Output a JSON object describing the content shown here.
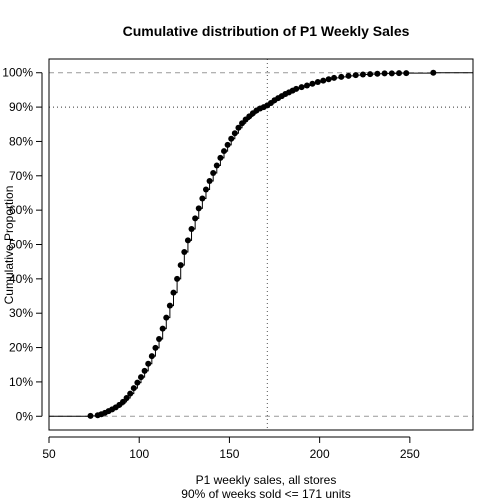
{
  "chart_data": {
    "type": "scatter",
    "title": "Cumulative distribution of P1 Weekly Sales",
    "xlabel": "P1 weekly sales, all stores",
    "subtitle": "90% of weeks sold <= 171 units",
    "ylabel": "Cumulative Proportion",
    "xlim": [
      50,
      285
    ],
    "ylim": [
      -0.04,
      1.04
    ],
    "x_ticks": [
      50,
      100,
      150,
      200,
      250
    ],
    "y_ticks": [
      {
        "value": 0.0,
        "label": "0%"
      },
      {
        "value": 0.1,
        "label": "10%"
      },
      {
        "value": 0.2,
        "label": "20%"
      },
      {
        "value": 0.3,
        "label": "30%"
      },
      {
        "value": 0.4,
        "label": "40%"
      },
      {
        "value": 0.5,
        "label": "50%"
      },
      {
        "value": 0.6,
        "label": "60%"
      },
      {
        "value": 0.7,
        "label": "70%"
      },
      {
        "value": 0.8,
        "label": "80%"
      },
      {
        "value": 0.9,
        "label": "90%"
      },
      {
        "value": 1.0,
        "label": "100%"
      }
    ],
    "reference_lines": {
      "horizontal_dashed": [
        0,
        1
      ],
      "horizontal_dotted": [
        0.9
      ],
      "vertical_dotted": [
        171
      ]
    },
    "grid": false,
    "series": [
      {
        "points": [
          [
            73,
            0.001
          ],
          [
            77,
            0.003
          ],
          [
            79,
            0.006
          ],
          [
            81,
            0.01
          ],
          [
            83,
            0.015
          ],
          [
            85,
            0.02
          ],
          [
            87,
            0.026
          ],
          [
            89,
            0.033
          ],
          [
            91,
            0.042
          ],
          [
            93,
            0.053
          ],
          [
            95,
            0.066
          ],
          [
            97,
            0.082
          ],
          [
            99,
            0.098
          ],
          [
            101,
            0.114
          ],
          [
            103,
            0.132
          ],
          [
            105,
            0.153
          ],
          [
            107,
            0.175
          ],
          [
            109,
            0.199
          ],
          [
            111,
            0.225
          ],
          [
            113,
            0.255
          ],
          [
            115,
            0.287
          ],
          [
            117,
            0.322
          ],
          [
            119,
            0.36
          ],
          [
            121,
            0.4
          ],
          [
            123,
            0.44
          ],
          [
            125,
            0.478
          ],
          [
            127,
            0.512
          ],
          [
            129,
            0.545
          ],
          [
            131,
            0.576
          ],
          [
            133,
            0.605
          ],
          [
            135,
            0.634
          ],
          [
            137,
            0.66
          ],
          [
            139,
            0.685
          ],
          [
            141,
            0.708
          ],
          [
            143,
            0.73
          ],
          [
            145,
            0.752
          ],
          [
            147,
            0.772
          ],
          [
            149,
            0.79
          ],
          [
            151,
            0.808
          ],
          [
            153,
            0.824
          ],
          [
            155,
            0.84
          ],
          [
            157,
            0.853
          ],
          [
            159,
            0.864
          ],
          [
            161,
            0.873
          ],
          [
            163,
            0.882
          ],
          [
            165,
            0.89
          ],
          [
            167,
            0.896
          ],
          [
            169,
            0.9
          ],
          [
            171,
            0.905
          ],
          [
            173,
            0.912
          ],
          [
            175,
            0.92
          ],
          [
            177,
            0.926
          ],
          [
            179,
            0.932
          ],
          [
            181,
            0.938
          ],
          [
            183,
            0.943
          ],
          [
            185,
            0.948
          ],
          [
            187,
            0.953
          ],
          [
            190,
            0.958
          ],
          [
            193,
            0.963
          ],
          [
            196,
            0.968
          ],
          [
            199,
            0.973
          ],
          [
            202,
            0.977
          ],
          [
            205,
            0.981
          ],
          [
            208,
            0.985
          ],
          [
            212,
            0.988
          ],
          [
            216,
            0.991
          ],
          [
            220,
            0.993
          ],
          [
            224,
            0.995
          ],
          [
            228,
            0.996
          ],
          [
            232,
            0.997
          ],
          [
            236,
            0.998
          ],
          [
            240,
            0.998
          ],
          [
            244,
            0.999
          ],
          [
            248,
            0.999
          ],
          [
            263,
            1.0
          ]
        ]
      }
    ]
  }
}
